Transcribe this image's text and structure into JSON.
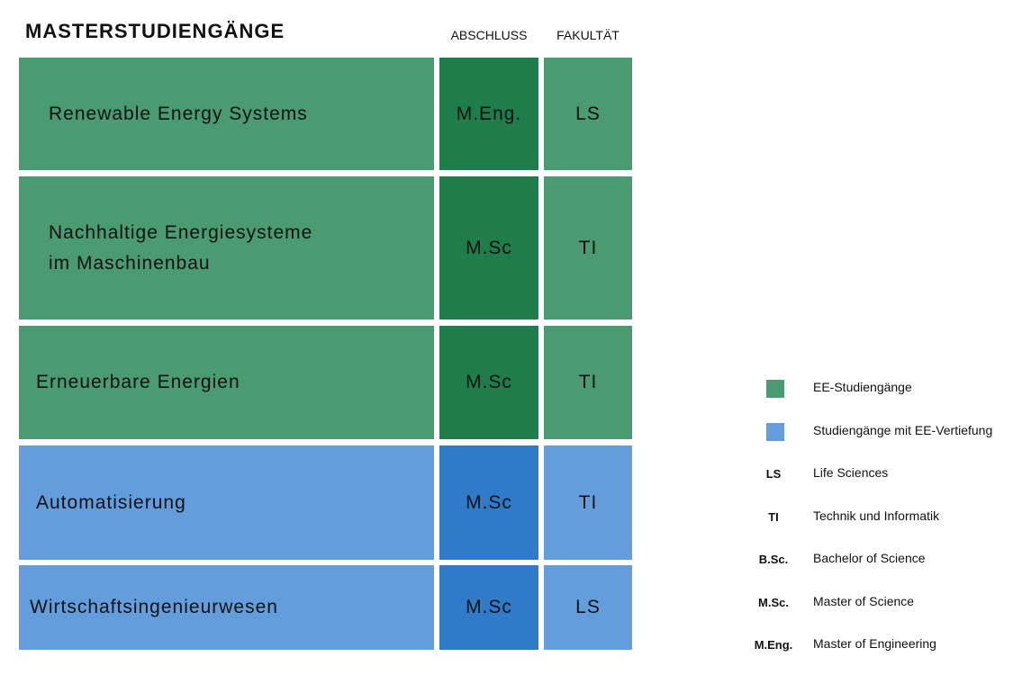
{
  "header": {
    "title": "MASTERSTUDIENGÄNGE",
    "col_abschluss": "ABSCHLUSS",
    "col_fakultaet": "FAKULTÄT"
  },
  "colors": {
    "ee_name": "#4a9a72",
    "ee_degree": "#1f7d4b",
    "ee_faculty": "#4a9a72",
    "vert_name": "#639ddc",
    "vert_degree": "#2f7bc9",
    "vert_faculty": "#639ddc"
  },
  "programs": [
    {
      "name_lines": [
        "Renewable Energy Systems"
      ],
      "degree": "M.Eng.",
      "faculty": "LS",
      "category": "ee"
    },
    {
      "name_lines": [
        "Nachhaltige Energiesysteme",
        "im Maschinenbau"
      ],
      "degree": "M.Sc",
      "faculty": "TI",
      "category": "ee"
    },
    {
      "name_lines": [
        "Erneuerbare Energien"
      ],
      "degree": "M.Sc",
      "faculty": "TI",
      "category": "ee"
    },
    {
      "name_lines": [
        "Automatisierung"
      ],
      "degree": "M.Sc",
      "faculty": "TI",
      "category": "vertiefung"
    },
    {
      "name_lines": [
        "Wirtschaftsingenieurwesen"
      ],
      "degree": "M.Sc",
      "faculty": "LS",
      "category": "vertiefung"
    }
  ],
  "legend": [
    {
      "type": "swatch",
      "color": "#4a9a72",
      "label": "EE-Studiengänge"
    },
    {
      "type": "swatch",
      "color": "#639ddc",
      "label": "Studiengänge mit EE-Vertiefung"
    },
    {
      "type": "abbr",
      "abbr": "LS",
      "label": "Life Sciences"
    },
    {
      "type": "abbr",
      "abbr": "TI",
      "label": "Technik und Informatik"
    },
    {
      "type": "abbr",
      "abbr": "B.Sc.",
      "label": "Bachelor of Science"
    },
    {
      "type": "abbr",
      "abbr": "M.Sc.",
      "label": "Master of Science"
    },
    {
      "type": "abbr",
      "abbr": "M.Eng.",
      "label": "Master of Engineering"
    }
  ]
}
